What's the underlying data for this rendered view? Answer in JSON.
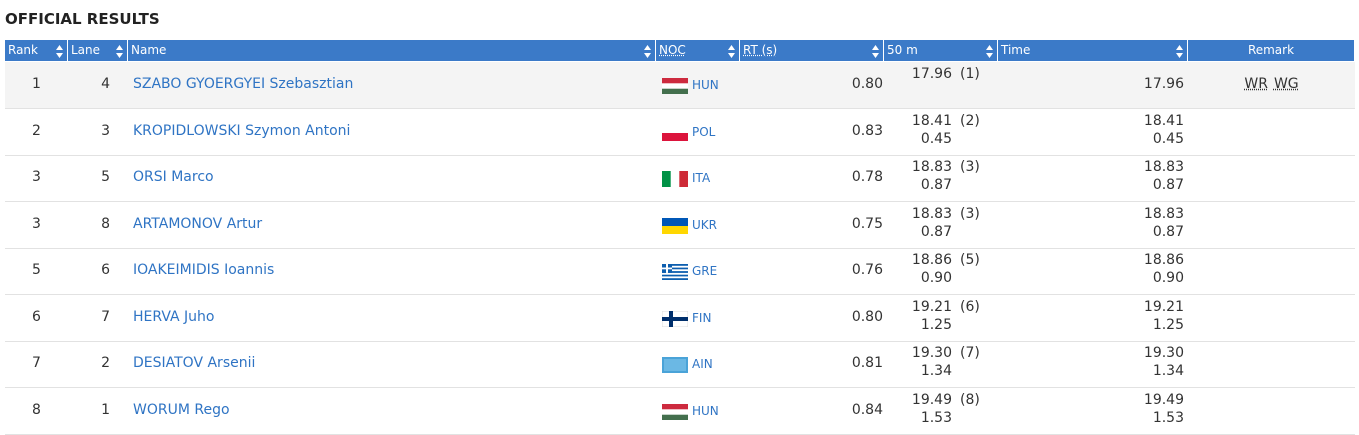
{
  "title": "OFFICIAL RESULTS",
  "table": {
    "headers": [
      "Rank",
      "Lane",
      "Name",
      "NOC",
      "RT (s)",
      "50 m",
      "Time",
      "Remark"
    ],
    "rows": [
      {
        "rank": "1",
        "lane": "4",
        "name": "SZABO GYOERGYEI Szebasztian",
        "noc": "HUN",
        "rt": "0.80",
        "split": "17.96",
        "split_place": "(1)",
        "time": "17.96",
        "remark": [
          "WR",
          "WG"
        ]
      },
      {
        "rank": "2",
        "lane": "3",
        "name": "KROPIDLOWSKI Szymon Antoni",
        "noc": "POL",
        "rt": "0.83",
        "split": "18.41",
        "split_place": "(2)",
        "split_behind": "0.45",
        "time": "18.41",
        "behind": "0.45"
      },
      {
        "rank": "3",
        "lane": "5",
        "name": "ORSI Marco",
        "noc": "ITA",
        "rt": "0.78",
        "split": "18.83",
        "split_place": "(3)",
        "split_behind": "0.87",
        "time": "18.83",
        "behind": "0.87"
      },
      {
        "rank": "3",
        "lane": "8",
        "name": "ARTAMONOV Artur",
        "noc": "UKR",
        "rt": "0.75",
        "split": "18.83",
        "split_place": "(3)",
        "split_behind": "0.87",
        "time": "18.83",
        "behind": "0.87"
      },
      {
        "rank": "5",
        "lane": "6",
        "name": "IOAKEIMIDIS Ioannis",
        "noc": "GRE",
        "rt": "0.76",
        "split": "18.86",
        "split_place": "(5)",
        "split_behind": "0.90",
        "time": "18.86",
        "behind": "0.90"
      },
      {
        "rank": "6",
        "lane": "7",
        "name": "HERVA Juho",
        "noc": "FIN",
        "rt": "0.80",
        "split": "19.21",
        "split_place": "(6)",
        "split_behind": "1.25",
        "time": "19.21",
        "behind": "1.25"
      },
      {
        "rank": "7",
        "lane": "2",
        "name": "DESIATOV Arsenii",
        "noc": "AIN",
        "rt": "0.81",
        "split": "19.30",
        "split_place": "(7)",
        "split_behind": "1.34",
        "time": "19.30",
        "behind": "1.34"
      },
      {
        "rank": "8",
        "lane": "1",
        "name": "WORUM Rego",
        "noc": "HUN",
        "rt": "0.84",
        "split": "19.49",
        "split_place": "(8)",
        "split_behind": "1.53",
        "time": "19.49",
        "behind": "1.53"
      }
    ]
  }
}
